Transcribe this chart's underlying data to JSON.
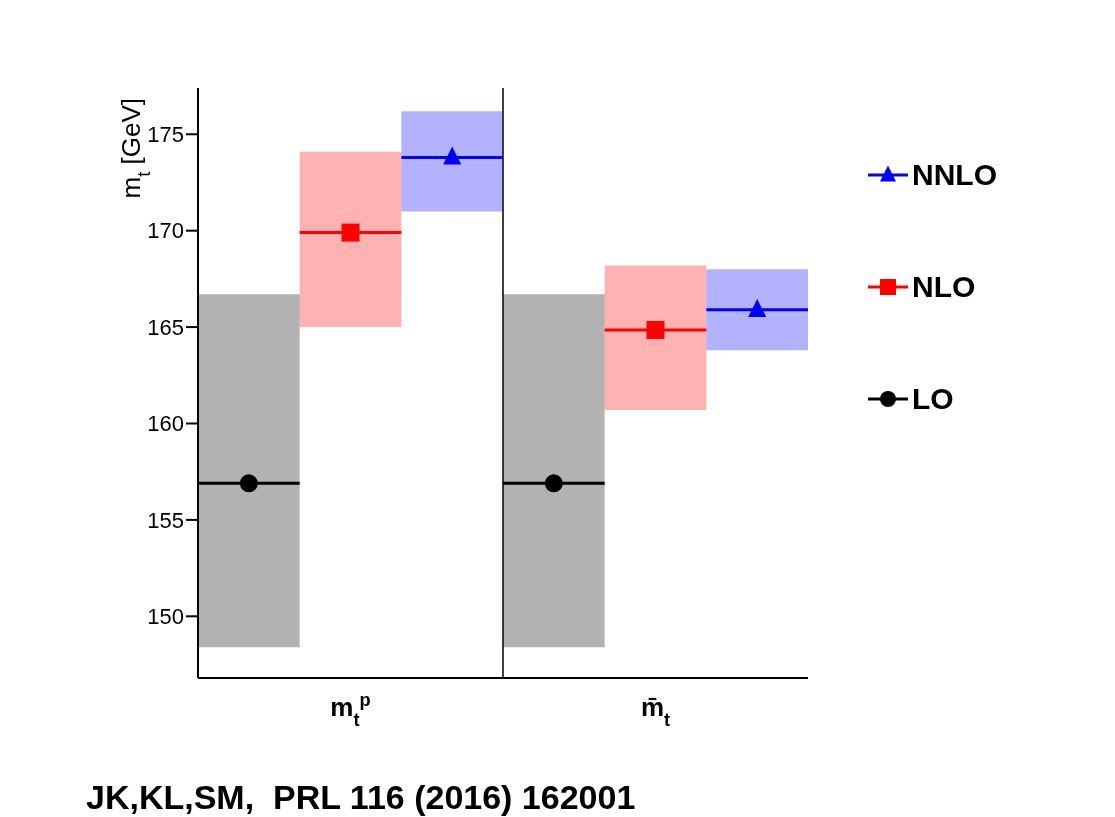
{
  "chart_data": {
    "type": "scatter",
    "ylabel": "m$_{t}$ [GeV]",
    "categories": [
      "m$_{t}$$^{p}$",
      "m̄$_{t}$"
    ],
    "ylim": [
      146.8,
      177.4
    ],
    "yticks": [
      150,
      155,
      160,
      165,
      170,
      175
    ],
    "grid": false,
    "legend": "right",
    "series": [
      {
        "name": "LO",
        "color": "#000000",
        "marker": "circle",
        "values": [
          156.9,
          156.9
        ],
        "errors": [
          [
            148.4,
            166.7
          ],
          [
            148.4,
            166.7
          ]
        ]
      },
      {
        "name": "NLO",
        "color": "#ff0000",
        "marker": "square",
        "values": [
          169.9,
          164.85
        ],
        "errors": [
          [
            165.0,
            174.1
          ],
          [
            160.7,
            168.2
          ]
        ]
      },
      {
        "name": "NNLO",
        "color": "#0000ff",
        "marker": "triangle",
        "values": [
          173.8,
          165.9
        ],
        "errors": [
          [
            171.0,
            176.2
          ],
          [
            163.8,
            168.0
          ]
        ]
      }
    ],
    "annotations": [
      "JK,KL,SM,  PRL 116 (2016) 162001"
    ]
  }
}
